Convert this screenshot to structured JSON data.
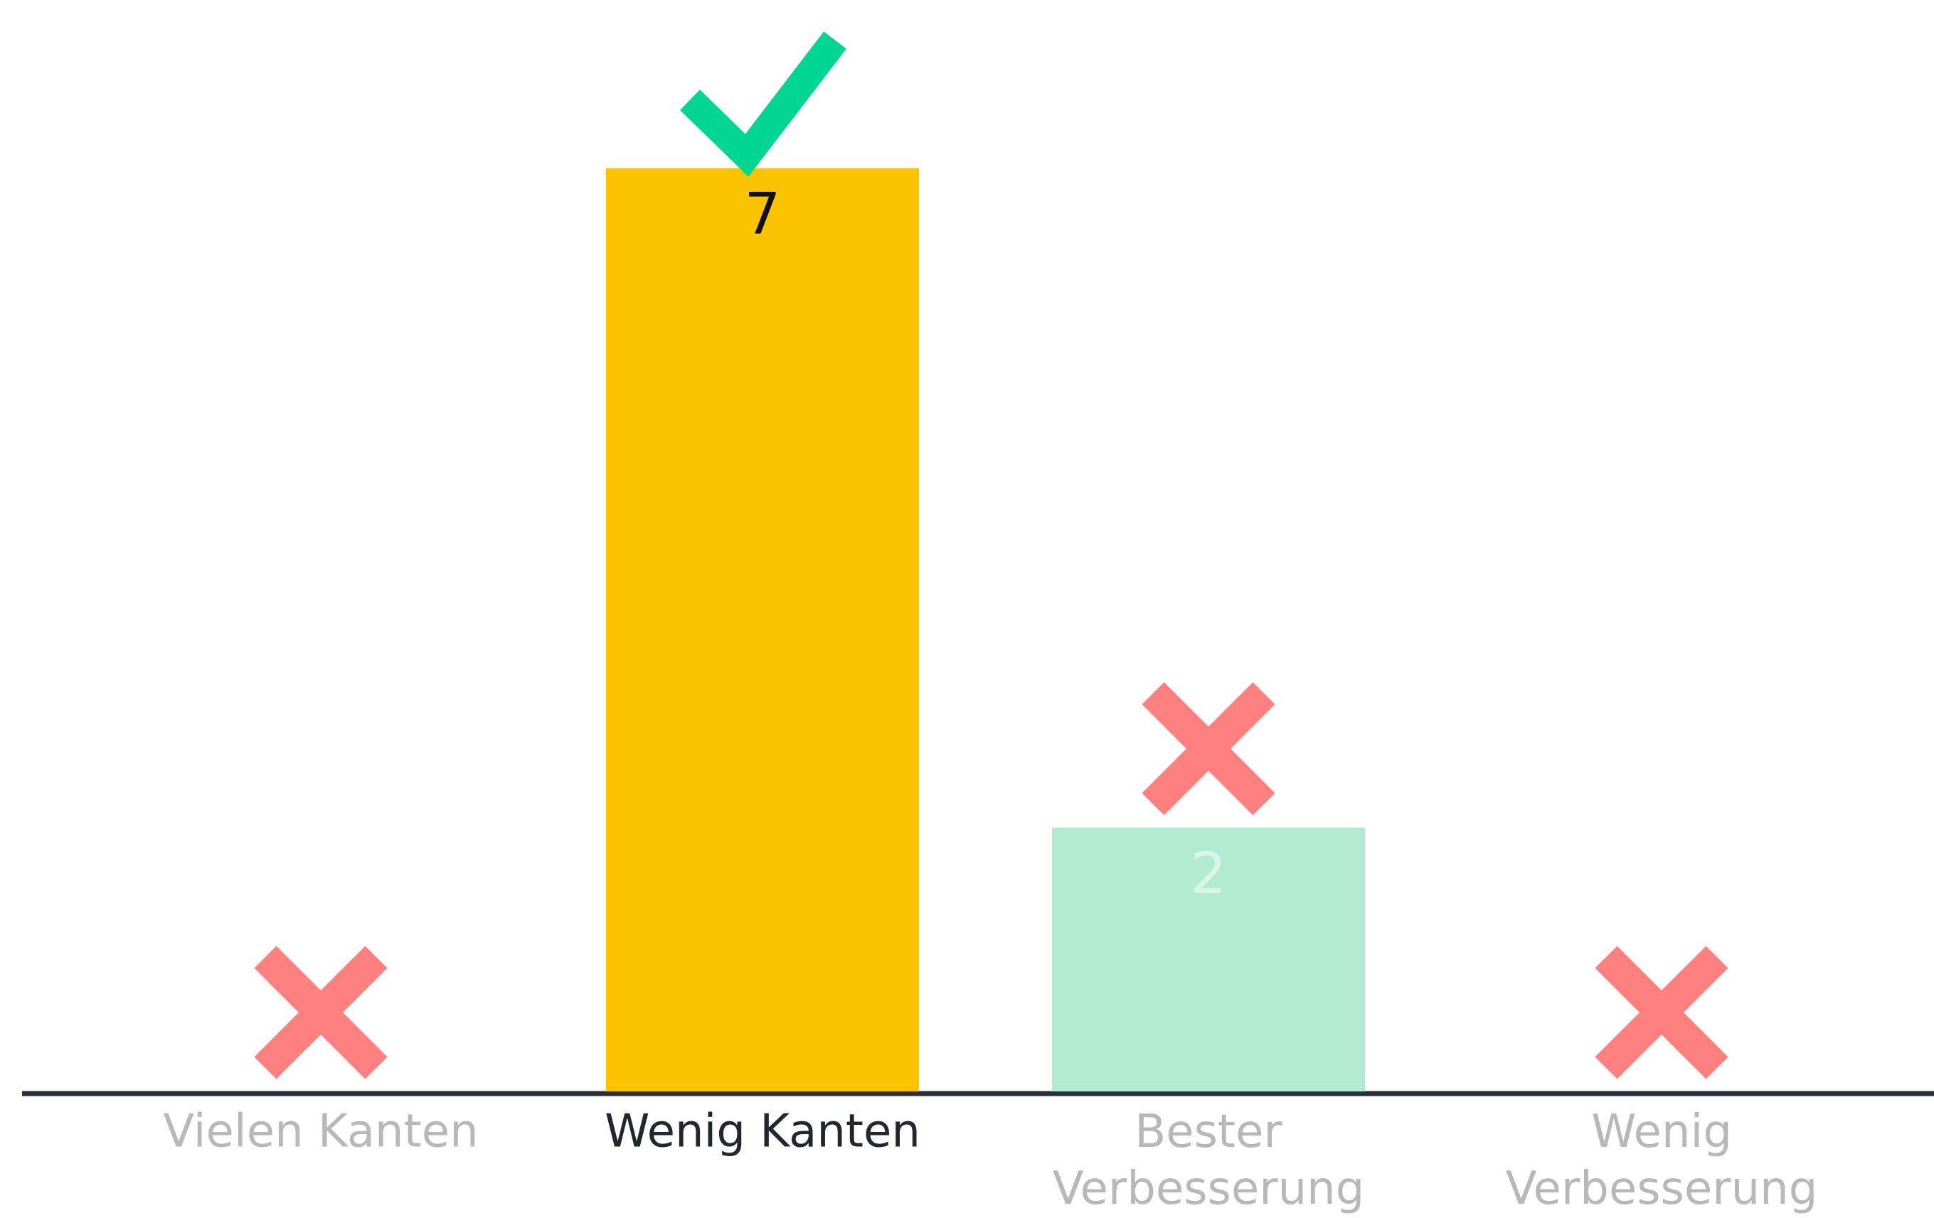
{
  "chart_data": {
    "type": "bar",
    "categories": [
      "Vielen Kanten",
      "Wenig Kanten",
      "Bester Verbesserung",
      "Wenig Verbesserung"
    ],
    "values": [
      0,
      7,
      2,
      0
    ],
    "colors": [
      "#fbc200",
      "#fbc200",
      "#b3ead2",
      "#b3ead2"
    ],
    "correct": [
      false,
      true,
      false,
      false
    ]
  }
}
